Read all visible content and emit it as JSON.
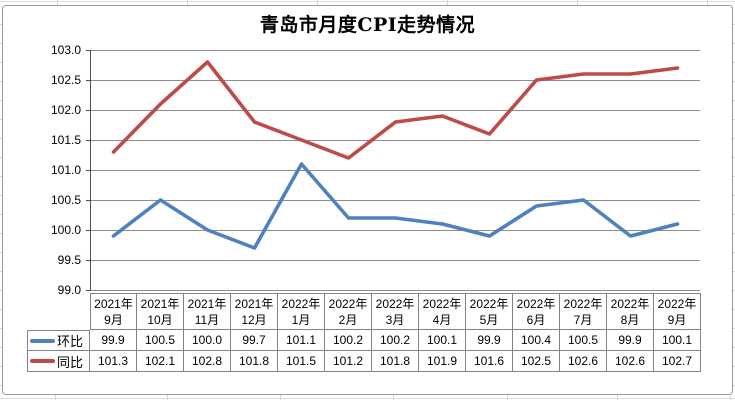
{
  "chart_data": {
    "type": "line",
    "title": "青岛市月度CPI走势情况",
    "categories": [
      "2021年9月",
      "2021年10月",
      "2021年11月",
      "2021年12月",
      "2022年1月",
      "2022年2月",
      "2022年3月",
      "2022年4月",
      "2022年5月",
      "2022年6月",
      "2022年7月",
      "2022年8月",
      "2022年9月"
    ],
    "series": [
      {
        "name": "环比",
        "color": "#4F81BD",
        "values": [
          99.9,
          100.5,
          100.0,
          99.7,
          101.1,
          100.2,
          100.2,
          100.1,
          99.9,
          100.4,
          100.5,
          99.9,
          100.1
        ]
      },
      {
        "name": "同比",
        "color": "#BE4B48",
        "values": [
          101.3,
          102.1,
          102.8,
          101.8,
          101.5,
          101.2,
          101.8,
          101.9,
          101.6,
          102.5,
          102.6,
          102.6,
          102.7
        ]
      }
    ],
    "xlabel": "",
    "ylabel": "",
    "ylim": [
      99.0,
      103.0
    ],
    "y_tick_step": 0.5,
    "y_tick_labels": [
      "99.0",
      "99.5",
      "100.0",
      "100.5",
      "101.0",
      "101.5",
      "102.0",
      "102.5",
      "103.0"
    ],
    "grid": "horizontal",
    "legend_position": "data-table-left",
    "data_table_shown": true,
    "axis_color": "#4d4d4d",
    "gridline_color": "#8c8c8c"
  }
}
